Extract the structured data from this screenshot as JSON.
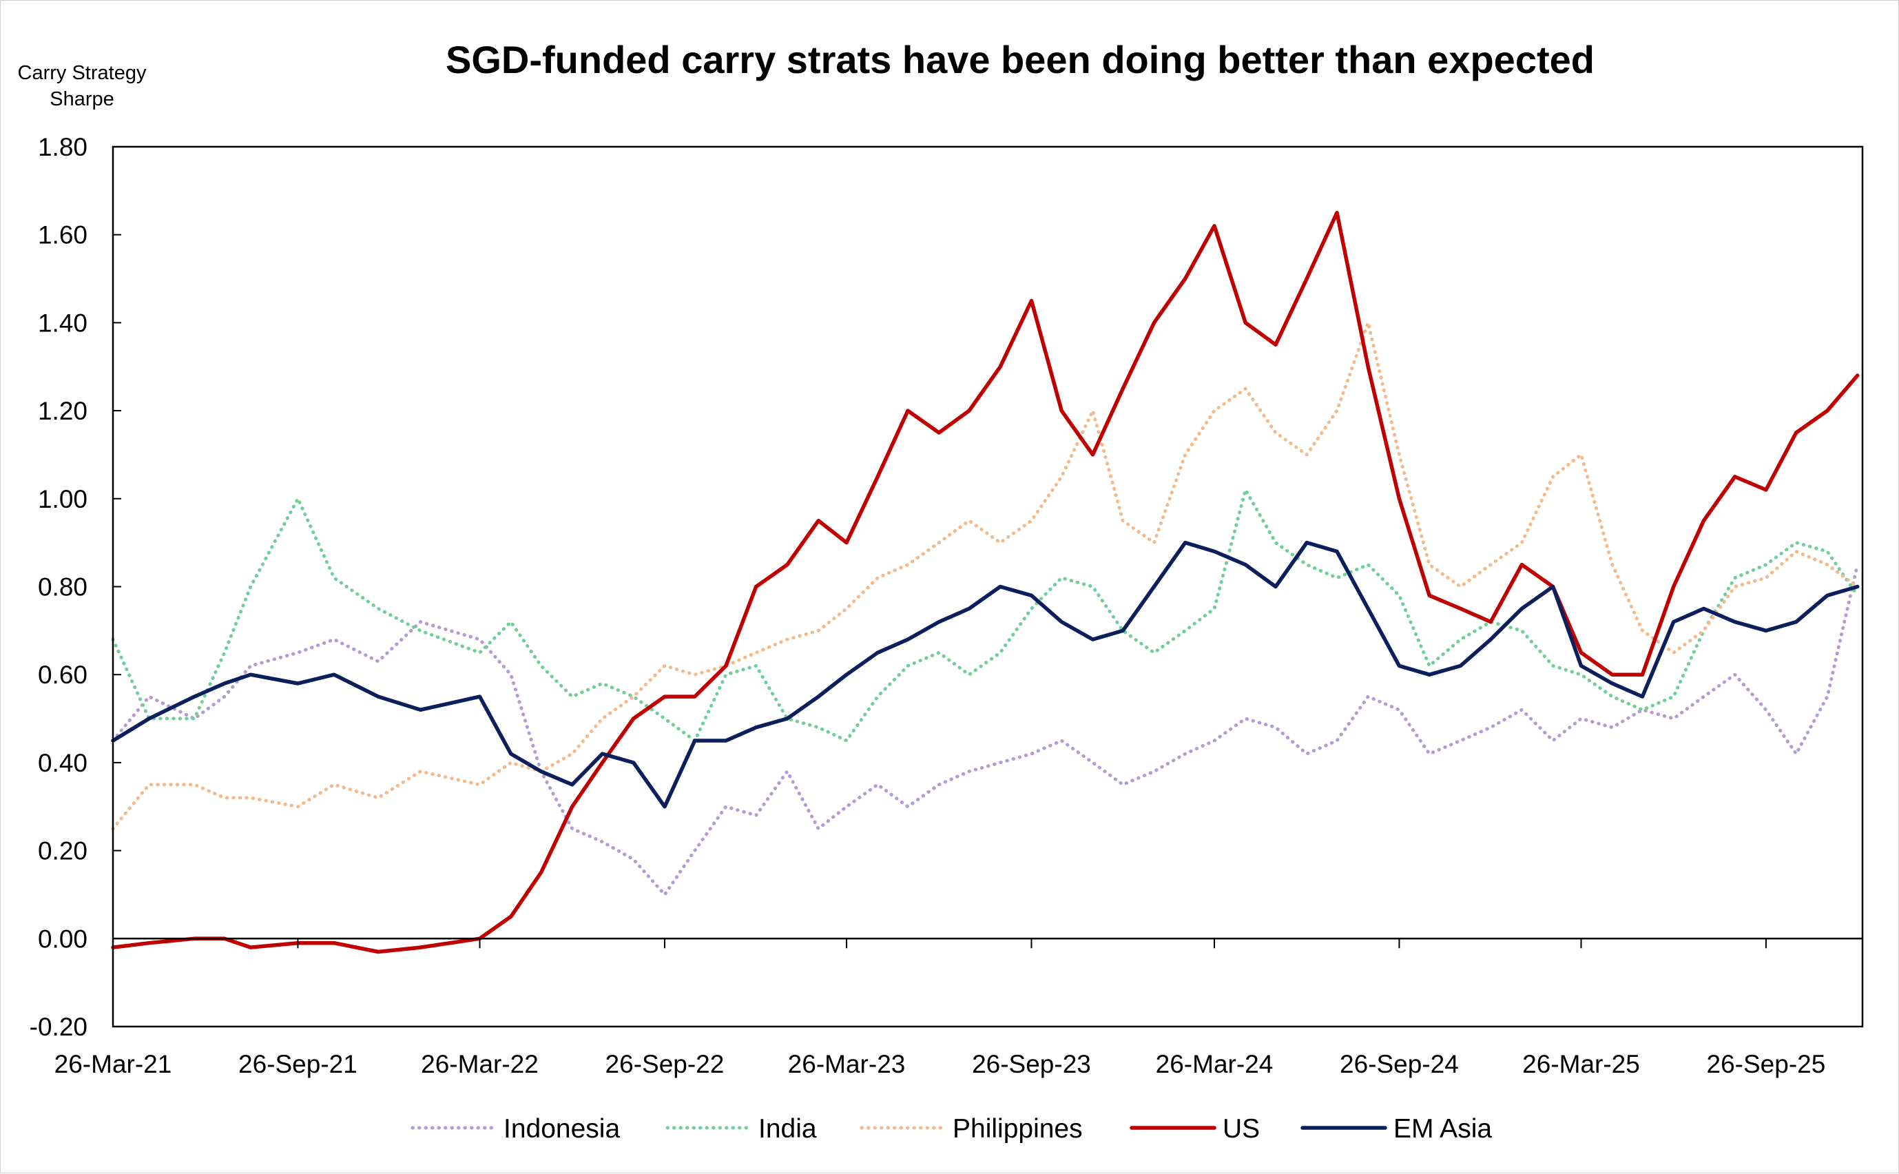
{
  "chart_data": {
    "type": "line",
    "title": "SGD-funded carry strats have been doing better than expected",
    "ylabel_lines": [
      "Carry Strategy",
      "Sharpe"
    ],
    "xlabel": "",
    "ylim": [
      -0.2,
      1.8
    ],
    "yticks": [
      -0.2,
      0.0,
      0.2,
      0.4,
      0.6,
      0.8,
      1.0,
      1.2,
      1.4,
      1.6,
      1.8
    ],
    "ytick_labels": [
      "-0.20",
      "0.00",
      "0.20",
      "0.40",
      "0.60",
      "0.80",
      "1.00",
      "1.20",
      "1.40",
      "1.60",
      "1.80"
    ],
    "xlim": [
      "2021-03-26",
      "2025-12-31"
    ],
    "xticks": [
      "2021-03-26",
      "2021-09-26",
      "2022-03-26",
      "2022-09-26",
      "2023-03-26",
      "2023-09-26",
      "2024-03-26",
      "2024-09-26",
      "2025-03-26",
      "2025-09-26"
    ],
    "xtick_labels": [
      "26-Mar-21",
      "26-Sep-21",
      "26-Mar-22",
      "26-Sep-22",
      "26-Mar-23",
      "26-Sep-23",
      "26-Mar-24",
      "26-Sep-24",
      "26-Mar-25",
      "26-Sep-25"
    ],
    "grid": false,
    "legend_position": "bottom",
    "x": [
      "2021-03-26",
      "2021-05-01",
      "2021-06-15",
      "2021-07-15",
      "2021-08-10",
      "2021-09-26",
      "2021-11-01",
      "2021-12-15",
      "2022-01-26",
      "2022-03-26",
      "2022-04-26",
      "2022-05-26",
      "2022-06-26",
      "2022-07-26",
      "2022-08-26",
      "2022-09-26",
      "2022-10-26",
      "2022-11-26",
      "2022-12-26",
      "2023-01-26",
      "2023-02-26",
      "2023-03-26",
      "2023-04-26",
      "2023-05-26",
      "2023-06-26",
      "2023-07-26",
      "2023-08-26",
      "2023-09-26",
      "2023-10-26",
      "2023-11-26",
      "2023-12-26",
      "2024-01-26",
      "2024-02-26",
      "2024-03-26",
      "2024-04-26",
      "2024-05-26",
      "2024-06-26",
      "2024-07-26",
      "2024-08-26",
      "2024-09-26",
      "2024-10-26",
      "2024-11-26",
      "2024-12-26",
      "2025-01-26",
      "2025-02-26",
      "2025-03-26",
      "2025-04-26",
      "2025-05-26",
      "2025-06-26",
      "2025-07-26",
      "2025-08-26",
      "2025-09-26",
      "2025-10-26",
      "2025-11-26",
      "2025-12-26"
    ],
    "series": [
      {
        "name": "Indonesia",
        "color": "#b49bd4",
        "style": "dotted",
        "values": [
          0.45,
          0.55,
          0.5,
          0.55,
          0.62,
          0.65,
          0.68,
          0.63,
          0.72,
          0.68,
          0.6,
          0.38,
          0.25,
          0.22,
          0.18,
          0.1,
          0.2,
          0.3,
          0.28,
          0.38,
          0.25,
          0.3,
          0.35,
          0.3,
          0.35,
          0.38,
          0.4,
          0.42,
          0.45,
          0.4,
          0.35,
          0.38,
          0.42,
          0.45,
          0.5,
          0.48,
          0.42,
          0.45,
          0.55,
          0.52,
          0.42,
          0.45,
          0.48,
          0.52,
          0.45,
          0.5,
          0.48,
          0.52,
          0.5,
          0.55,
          0.6,
          0.52,
          0.42,
          0.55,
          0.85
        ]
      },
      {
        "name": "India",
        "color": "#6fcf97",
        "style": "dotted",
        "values": [
          0.68,
          0.5,
          0.5,
          0.65,
          0.8,
          1.0,
          0.82,
          0.75,
          0.7,
          0.65,
          0.72,
          0.62,
          0.55,
          0.58,
          0.55,
          0.5,
          0.45,
          0.6,
          0.62,
          0.5,
          0.48,
          0.45,
          0.55,
          0.62,
          0.65,
          0.6,
          0.65,
          0.75,
          0.82,
          0.8,
          0.7,
          0.65,
          0.7,
          0.75,
          1.02,
          0.9,
          0.85,
          0.82,
          0.85,
          0.78,
          0.62,
          0.68,
          0.72,
          0.7,
          0.62,
          0.6,
          0.55,
          0.52,
          0.55,
          0.7,
          0.82,
          0.85,
          0.9,
          0.88,
          0.78
        ]
      },
      {
        "name": "Philippines",
        "color": "#f5b98a",
        "style": "dotted",
        "values": [
          0.25,
          0.35,
          0.35,
          0.32,
          0.32,
          0.3,
          0.35,
          0.32,
          0.38,
          0.35,
          0.4,
          0.38,
          0.42,
          0.5,
          0.55,
          0.62,
          0.6,
          0.62,
          0.65,
          0.68,
          0.7,
          0.75,
          0.82,
          0.85,
          0.9,
          0.95,
          0.9,
          0.95,
          1.05,
          1.2,
          0.95,
          0.9,
          1.1,
          1.2,
          1.25,
          1.15,
          1.1,
          1.2,
          1.4,
          1.1,
          0.85,
          0.8,
          0.85,
          0.9,
          1.05,
          1.1,
          0.85,
          0.7,
          0.65,
          0.7,
          0.8,
          0.82,
          0.88,
          0.85,
          0.8
        ]
      },
      {
        "name": "US",
        "color": "#c00000",
        "style": "solid",
        "values": [
          -0.02,
          -0.01,
          0.0,
          0.0,
          -0.02,
          -0.01,
          -0.01,
          -0.03,
          -0.02,
          0.0,
          0.05,
          0.15,
          0.3,
          0.4,
          0.5,
          0.55,
          0.55,
          0.62,
          0.8,
          0.85,
          0.95,
          0.9,
          1.05,
          1.2,
          1.15,
          1.2,
          1.3,
          1.45,
          1.2,
          1.1,
          1.25,
          1.4,
          1.5,
          1.62,
          1.4,
          1.35,
          1.5,
          1.65,
          1.3,
          1.0,
          0.78,
          0.75,
          0.72,
          0.85,
          0.8,
          0.65,
          0.6,
          0.6,
          0.8,
          0.95,
          1.05,
          1.02,
          1.15,
          1.2,
          1.28
        ]
      },
      {
        "name": "EM Asia",
        "color": "#0b1f5c",
        "style": "solid",
        "values": [
          0.45,
          0.5,
          0.55,
          0.58,
          0.6,
          0.58,
          0.6,
          0.55,
          0.52,
          0.55,
          0.42,
          0.38,
          0.35,
          0.42,
          0.4,
          0.3,
          0.45,
          0.45,
          0.48,
          0.5,
          0.55,
          0.6,
          0.65,
          0.68,
          0.72,
          0.75,
          0.8,
          0.78,
          0.72,
          0.68,
          0.7,
          0.8,
          0.9,
          0.88,
          0.85,
          0.8,
          0.9,
          0.88,
          0.75,
          0.62,
          0.6,
          0.62,
          0.68,
          0.75,
          0.8,
          0.62,
          0.58,
          0.55,
          0.72,
          0.75,
          0.72,
          0.7,
          0.72,
          0.78,
          0.8
        ]
      }
    ]
  }
}
